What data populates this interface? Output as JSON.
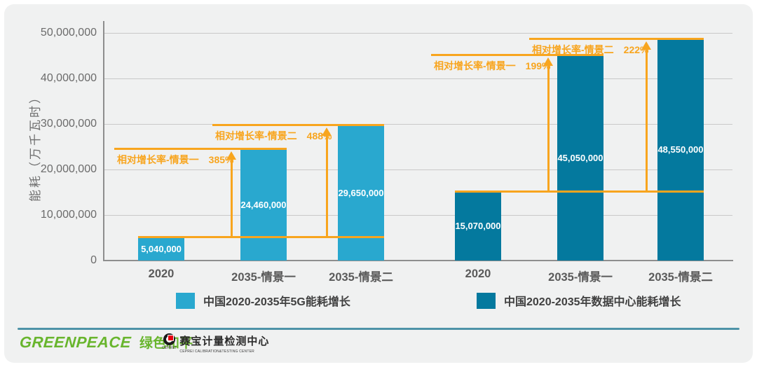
{
  "chart_data": {
    "type": "bar",
    "title": "",
    "ylabel": "能耗（万千瓦时）",
    "ylim": [
      0,
      50000000
    ],
    "ytick_step": 10000000,
    "grid": true,
    "legend_position": "bottom",
    "categories": [
      "2020",
      "2035-情景一",
      "2035-情景二"
    ],
    "series": [
      {
        "name": "中国2020-2035年5G能耗增长",
        "color": "#29A8CF",
        "values": [
          5040000,
          24460000,
          29650000
        ],
        "value_labels": [
          "5,040,000",
          "24,460,000",
          "29,650,000"
        ]
      },
      {
        "name": "中国2020-2035年数据中心能耗增长",
        "color": "#04799E",
        "values": [
          15070000,
          45050000,
          48550000
        ],
        "value_labels": [
          "15,070,000",
          "45,050,000",
          "48,550,000"
        ]
      }
    ],
    "annotations": [
      {
        "series": 0,
        "bar": 1,
        "label": "相对增长率-情景一",
        "pct": "385%"
      },
      {
        "series": 0,
        "bar": 2,
        "label": "相对增长率-情景二",
        "pct": "488%"
      },
      {
        "series": 1,
        "bar": 1,
        "label": "相对增长率-情景一",
        "pct": "199%"
      },
      {
        "series": 1,
        "bar": 2,
        "label": "相对增长率-情景二",
        "pct": "222%"
      }
    ],
    "annotation_color": "#F8A51E"
  },
  "legend": [
    {
      "label": "中国2020-2035年5G能耗增长",
      "color": "#29A8CF"
    },
    {
      "label": "中国2020-2035年数据中心能耗增长",
      "color": "#04799E"
    }
  ],
  "footer": {
    "greenpeace_en": "GREENPEACE",
    "greenpeace_cn": "绿色和平",
    "ceprei_name": "赛宝计量检测中心",
    "ceprei_sub": "CEPREI CALIBRATION&TESTING CENTER",
    "ceprei_icon_text": "CEPREI"
  },
  "colors": {
    "background": "#F0F1F1",
    "page": "#FFFFFF",
    "grid": "#C9C9C9",
    "axis": "#8E8E8E",
    "tick_text": "#6B6B6B",
    "bar_label": "#FFFFFF",
    "annotation": "#F8A51E",
    "divider": "#4E93A8",
    "greenpeace_green": "#68B52D"
  }
}
